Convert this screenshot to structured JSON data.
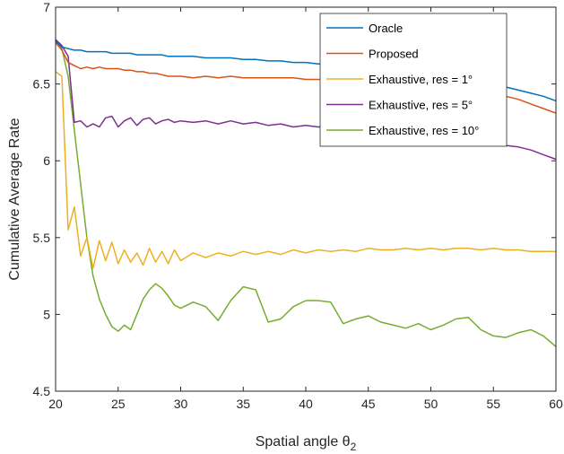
{
  "chart_data": {
    "type": "line",
    "title": "",
    "xlabel": "Spatial angle θ",
    "xlabel_subscript": "2",
    "ylabel": "Cumulative Average Rate",
    "xlim": [
      20,
      60
    ],
    "ylim": [
      4.5,
      7
    ],
    "xticks": [
      "20",
      "25",
      "30",
      "35",
      "40",
      "45",
      "50",
      "55",
      "60"
    ],
    "yticks": [
      "4.5",
      "5",
      "5.5",
      "6",
      "6.5",
      "7"
    ],
    "grid": false,
    "legend_position": "top-right",
    "x": [
      20,
      20.5,
      21,
      21.5,
      22,
      22.5,
      23,
      23.5,
      24,
      24.5,
      25,
      25.5,
      26,
      26.5,
      27,
      27.5,
      28,
      28.5,
      29,
      29.5,
      30,
      31,
      32,
      33,
      34,
      35,
      36,
      37,
      38,
      39,
      40,
      41,
      42,
      43,
      44,
      45,
      46,
      47,
      48,
      49,
      50,
      51,
      52,
      53,
      54,
      55,
      56,
      57,
      58,
      59,
      60
    ],
    "series": [
      {
        "name": "Oracle",
        "color": "#0072BD",
        "values": [
          6.78,
          6.74,
          6.73,
          6.72,
          6.72,
          6.71,
          6.71,
          6.71,
          6.71,
          6.7,
          6.7,
          6.7,
          6.7,
          6.69,
          6.69,
          6.69,
          6.69,
          6.69,
          6.68,
          6.68,
          6.68,
          6.68,
          6.67,
          6.67,
          6.67,
          6.66,
          6.66,
          6.65,
          6.65,
          6.64,
          6.64,
          6.63,
          6.63,
          6.62,
          6.62,
          6.61,
          6.6,
          6.6,
          6.59,
          6.58,
          6.57,
          6.56,
          6.55,
          6.53,
          6.52,
          6.5,
          6.48,
          6.46,
          6.44,
          6.42,
          6.39
        ]
      },
      {
        "name": "Proposed",
        "color": "#D95319",
        "values": [
          6.77,
          6.72,
          6.64,
          6.62,
          6.6,
          6.61,
          6.6,
          6.61,
          6.6,
          6.6,
          6.6,
          6.59,
          6.59,
          6.58,
          6.58,
          6.57,
          6.57,
          6.56,
          6.55,
          6.55,
          6.55,
          6.54,
          6.55,
          6.54,
          6.55,
          6.54,
          6.54,
          6.54,
          6.54,
          6.54,
          6.53,
          6.53,
          6.53,
          6.52,
          6.52,
          6.52,
          6.51,
          6.51,
          6.5,
          6.5,
          6.49,
          6.49,
          6.48,
          6.47,
          6.46,
          6.44,
          6.42,
          6.4,
          6.37,
          6.34,
          6.31
        ]
      },
      {
        "name": "Exhaustive, res = 1°",
        "color": "#EDB120",
        "values": [
          6.58,
          6.55,
          5.55,
          5.7,
          5.38,
          5.5,
          5.3,
          5.48,
          5.35,
          5.47,
          5.33,
          5.42,
          5.34,
          5.4,
          5.32,
          5.43,
          5.34,
          5.41,
          5.33,
          5.42,
          5.35,
          5.4,
          5.37,
          5.4,
          5.38,
          5.41,
          5.39,
          5.41,
          5.39,
          5.42,
          5.4,
          5.42,
          5.41,
          5.42,
          5.41,
          5.43,
          5.42,
          5.42,
          5.43,
          5.42,
          5.43,
          5.42,
          5.43,
          5.43,
          5.42,
          5.43,
          5.42,
          5.42,
          5.41,
          5.41,
          5.41
        ]
      },
      {
        "name": "Exhaustive, res = 5°",
        "color": "#7E2F8E",
        "values": [
          6.79,
          6.75,
          6.68,
          6.25,
          6.26,
          6.22,
          6.24,
          6.22,
          6.28,
          6.29,
          6.22,
          6.26,
          6.28,
          6.23,
          6.27,
          6.28,
          6.24,
          6.26,
          6.27,
          6.25,
          6.26,
          6.25,
          6.26,
          6.24,
          6.26,
          6.24,
          6.25,
          6.23,
          6.24,
          6.22,
          6.23,
          6.22,
          6.22,
          6.21,
          6.21,
          6.2,
          6.2,
          6.19,
          6.19,
          6.18,
          6.17,
          6.16,
          6.16,
          6.14,
          6.13,
          6.12,
          6.1,
          6.09,
          6.07,
          6.04,
          6.01
        ]
      },
      {
        "name": "Exhaustive, res = 10°",
        "color": "#77AC30",
        "values": [
          6.78,
          6.73,
          6.55,
          6.2,
          5.85,
          5.5,
          5.25,
          5.1,
          5.0,
          4.92,
          4.89,
          4.93,
          4.9,
          5.0,
          5.1,
          5.16,
          5.2,
          5.17,
          5.12,
          5.06,
          5.04,
          5.08,
          5.05,
          4.96,
          5.09,
          5.18,
          5.16,
          4.95,
          4.97,
          5.05,
          5.09,
          5.09,
          5.08,
          4.94,
          4.97,
          4.99,
          4.95,
          4.93,
          4.91,
          4.94,
          4.9,
          4.93,
          4.97,
          4.98,
          4.9,
          4.86,
          4.85,
          4.88,
          4.9,
          4.86,
          4.79
        ]
      }
    ]
  }
}
